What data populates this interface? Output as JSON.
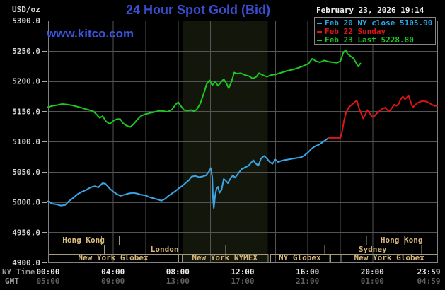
{
  "header": {
    "units_label": "USD/oz",
    "title": "24 Hour Spot Gold (Bid)",
    "site": "www.kitco.com",
    "datetime": "February 23, 2026 19:14"
  },
  "legend": {
    "items": [
      {
        "label": "Feb 20 NY close 5105.90",
        "color": "#29a8e8"
      },
      {
        "label": "Feb 22 Sunday",
        "color": "#dd1515"
      },
      {
        "label": "Feb 23 Last 5228.80",
        "color": "#1dc822"
      }
    ]
  },
  "axes": {
    "ny_caption": "NY Time",
    "gmt_caption": "GMT",
    "y_tick_values": [
      5300,
      5250,
      5200,
      5150,
      5100,
      5050,
      5000,
      4950,
      4900
    ],
    "x_ticks": [
      {
        "t": 0,
        "ny": "00:00",
        "gmt": "05:00"
      },
      {
        "t": 4,
        "ny": "04:00",
        "gmt": "09:00"
      },
      {
        "t": 8,
        "ny": "08:00",
        "gmt": "13:00"
      },
      {
        "t": 12,
        "ny": "12:00",
        "gmt": "17:00"
      },
      {
        "t": 16,
        "ny": "16:00",
        "gmt": "21:00"
      },
      {
        "t": 20,
        "ny": "20:00",
        "gmt": "01:00"
      },
      {
        "t": 24,
        "ny": "23:59",
        "gmt": "04:59"
      }
    ],
    "colors": {
      "ny_labels": "#e8e8e8",
      "gmt_labels": "#606060",
      "tick_labels": "#d6d6d6",
      "grid": "#545454",
      "border": "#828282",
      "band": "#12160b"
    }
  },
  "sessions": {
    "text_color": "#d9b97c",
    "border_color": "#a39a7e",
    "rows": [
      {
        "boxes": [
          {
            "label": "Hong Kong",
            "t0": 0,
            "t1": 4.37,
            "div": 3.28
          },
          {
            "label": "Hong Kong",
            "t0": 19.61,
            "t1": 24,
            "div": 21.96
          }
        ]
      },
      {
        "boxes": [
          {
            "label": "",
            "t0": 0,
            "t1": 3.45
          },
          {
            "label": "London",
            "t0": 3.45,
            "t1": 10.92
          },
          {
            "label": "Sydney",
            "t0": 17.03,
            "t1": 23.01
          },
          {
            "label": "",
            "t0": 23.01,
            "t1": 24
          }
        ]
      },
      {
        "boxes": [
          {
            "label": "New York Globex",
            "t0": 0,
            "t1": 8.03
          },
          {
            "label": "New York NYMEX",
            "t0": 8.25,
            "t1": 13.54
          },
          {
            "label": "NY Globex",
            "t0": 13.71,
            "t1": 17.34
          },
          {
            "label": "",
            "t0": 17.42,
            "t1": 17.99
          },
          {
            "label": "New York Globex",
            "t0": 18.08,
            "t1": 24
          }
        ]
      }
    ]
  },
  "chart_data": {
    "type": "line",
    "title": "24 Hour Spot Gold (Bid)",
    "xlabel": "NY Time (hours 00:00-23:59)",
    "ylabel": "USD/oz",
    "xlim": [
      0,
      24
    ],
    "ylim": [
      4900,
      5300
    ],
    "grid": "on, 2h vertical / 50 USD horizontal",
    "legend_position": "top-right",
    "shaded_region": {
      "t0": 8.3,
      "t1": 13.54
    },
    "series": [
      {
        "name": "Feb 20 NY close 5105.90",
        "color": "#3aa6e8",
        "points": [
          [
            0,
            5001
          ],
          [
            0.26,
            4997
          ],
          [
            0.52,
            4996
          ],
          [
            0.79,
            4994
          ],
          [
            1.05,
            4995
          ],
          [
            1.31,
            5002
          ],
          [
            1.57,
            5007
          ],
          [
            1.83,
            5013
          ],
          [
            2.1,
            5017
          ],
          [
            2.36,
            5020
          ],
          [
            2.62,
            5024
          ],
          [
            2.88,
            5026
          ],
          [
            3.1,
            5024
          ],
          [
            3.36,
            5031
          ],
          [
            3.54,
            5030
          ],
          [
            3.8,
            5022
          ],
          [
            4.02,
            5017
          ],
          [
            4.24,
            5013
          ],
          [
            4.45,
            5010
          ],
          [
            4.72,
            5012
          ],
          [
            4.98,
            5014
          ],
          [
            5.24,
            5015
          ],
          [
            5.46,
            5014
          ],
          [
            5.72,
            5012
          ],
          [
            5.98,
            5011
          ],
          [
            6.24,
            5008
          ],
          [
            6.51,
            5006
          ],
          [
            6.77,
            5004
          ],
          [
            6.99,
            5002
          ],
          [
            7.21,
            5005
          ],
          [
            7.42,
            5010
          ],
          [
            7.64,
            5014
          ],
          [
            7.86,
            5018
          ],
          [
            8.03,
            5022
          ],
          [
            8.25,
            5026
          ],
          [
            8.47,
            5031
          ],
          [
            8.69,
            5036
          ],
          [
            8.86,
            5042
          ],
          [
            9.08,
            5043
          ],
          [
            9.3,
            5041
          ],
          [
            9.52,
            5042
          ],
          [
            9.74,
            5044
          ],
          [
            9.91,
            5050
          ],
          [
            10.04,
            5056
          ],
          [
            10.13,
            5040
          ],
          [
            10.17,
            5005
          ],
          [
            10.22,
            4990
          ],
          [
            10.31,
            5012
          ],
          [
            10.39,
            5022
          ],
          [
            10.48,
            5025
          ],
          [
            10.57,
            5015
          ],
          [
            10.7,
            5020
          ],
          [
            10.83,
            5038
          ],
          [
            10.96,
            5035
          ],
          [
            11.09,
            5031
          ],
          [
            11.27,
            5040
          ],
          [
            11.4,
            5044
          ],
          [
            11.53,
            5040
          ],
          [
            11.7,
            5046
          ],
          [
            11.92,
            5054
          ],
          [
            12.14,
            5057
          ],
          [
            12.36,
            5060
          ],
          [
            12.53,
            5065
          ],
          [
            12.66,
            5069
          ],
          [
            12.79,
            5064
          ],
          [
            12.97,
            5060
          ],
          [
            13.14,
            5072
          ],
          [
            13.32,
            5076
          ],
          [
            13.49,
            5072
          ],
          [
            13.67,
            5066
          ],
          [
            13.84,
            5063
          ],
          [
            14.02,
            5070
          ],
          [
            14.19,
            5066
          ],
          [
            14.37,
            5068
          ],
          [
            14.54,
            5069
          ],
          [
            14.76,
            5070
          ],
          [
            14.98,
            5071
          ],
          [
            15.2,
            5072
          ],
          [
            15.41,
            5073
          ],
          [
            15.63,
            5074
          ],
          [
            15.81,
            5077
          ],
          [
            16.03,
            5082
          ],
          [
            16.24,
            5088
          ],
          [
            16.46,
            5092
          ],
          [
            16.72,
            5095
          ],
          [
            16.99,
            5100
          ],
          [
            17.2,
            5104
          ],
          [
            17.29,
            5106
          ]
        ]
      },
      {
        "name": "Feb 22 Sunday",
        "color": "#dd1515",
        "points": [
          [
            17.29,
            5106
          ],
          [
            18.03,
            5106
          ],
          [
            18.12,
            5115
          ],
          [
            18.25,
            5134
          ],
          [
            18.38,
            5148
          ],
          [
            18.56,
            5157
          ],
          [
            18.78,
            5162
          ],
          [
            18.95,
            5166
          ],
          [
            19.04,
            5168
          ],
          [
            19.17,
            5156
          ],
          [
            19.3,
            5147
          ],
          [
            19.43,
            5138
          ],
          [
            19.56,
            5144
          ],
          [
            19.69,
            5152
          ],
          [
            19.83,
            5147
          ],
          [
            19.96,
            5141
          ],
          [
            20.13,
            5142
          ],
          [
            20.26,
            5146
          ],
          [
            20.44,
            5150
          ],
          [
            20.61,
            5154
          ],
          [
            20.79,
            5156
          ],
          [
            20.92,
            5152
          ],
          [
            21.05,
            5150
          ],
          [
            21.22,
            5156
          ],
          [
            21.35,
            5161
          ],
          [
            21.48,
            5159
          ],
          [
            21.62,
            5162
          ],
          [
            21.75,
            5170
          ],
          [
            21.88,
            5174
          ],
          [
            22.01,
            5170
          ],
          [
            22.14,
            5173
          ],
          [
            22.23,
            5176
          ],
          [
            22.36,
            5166
          ],
          [
            22.49,
            5156
          ],
          [
            22.62,
            5160
          ],
          [
            22.79,
            5164
          ],
          [
            22.97,
            5166
          ],
          [
            23.14,
            5167
          ],
          [
            23.32,
            5166
          ],
          [
            23.49,
            5164
          ],
          [
            23.67,
            5161
          ],
          [
            23.84,
            5159
          ],
          [
            24,
            5159
          ]
        ]
      },
      {
        "name": "Feb 23 Last 5228.80",
        "color": "#1dc822",
        "points": [
          [
            0,
            5157
          ],
          [
            0.26,
            5159
          ],
          [
            0.52,
            5160
          ],
          [
            0.87,
            5162
          ],
          [
            1.18,
            5161
          ],
          [
            1.44,
            5160
          ],
          [
            1.75,
            5158
          ],
          [
            2.01,
            5156
          ],
          [
            2.27,
            5154
          ],
          [
            2.53,
            5152
          ],
          [
            2.79,
            5150
          ],
          [
            3.01,
            5144
          ],
          [
            3.19,
            5139
          ],
          [
            3.36,
            5142
          ],
          [
            3.58,
            5133
          ],
          [
            3.8,
            5129
          ],
          [
            4.02,
            5134
          ],
          [
            4.24,
            5137
          ],
          [
            4.45,
            5137
          ],
          [
            4.63,
            5130
          ],
          [
            4.85,
            5126
          ],
          [
            5.07,
            5124
          ],
          [
            5.28,
            5129
          ],
          [
            5.5,
            5136
          ],
          [
            5.72,
            5142
          ],
          [
            5.98,
            5145
          ],
          [
            6.29,
            5147
          ],
          [
            6.59,
            5149
          ],
          [
            6.9,
            5151
          ],
          [
            7.16,
            5150
          ],
          [
            7.38,
            5149
          ],
          [
            7.64,
            5153
          ],
          [
            7.86,
            5161
          ],
          [
            8.03,
            5165
          ],
          [
            8.21,
            5158
          ],
          [
            8.38,
            5152
          ],
          [
            8.6,
            5151
          ],
          [
            8.82,
            5152
          ],
          [
            9,
            5150
          ],
          [
            9.17,
            5153
          ],
          [
            9.39,
            5163
          ],
          [
            9.61,
            5180
          ],
          [
            9.78,
            5195
          ],
          [
            9.96,
            5201
          ],
          [
            10.13,
            5193
          ],
          [
            10.31,
            5199
          ],
          [
            10.48,
            5192
          ],
          [
            10.66,
            5198
          ],
          [
            10.83,
            5203
          ],
          [
            11,
            5196
          ],
          [
            11.14,
            5188
          ],
          [
            11.31,
            5199
          ],
          [
            11.48,
            5214
          ],
          [
            11.66,
            5212
          ],
          [
            11.88,
            5213
          ],
          [
            12.14,
            5210
          ],
          [
            12.4,
            5208
          ],
          [
            12.62,
            5204
          ],
          [
            12.84,
            5207
          ],
          [
            13.01,
            5213
          ],
          [
            13.23,
            5210
          ],
          [
            13.49,
            5207
          ],
          [
            13.76,
            5210
          ],
          [
            14.06,
            5211
          ],
          [
            14.41,
            5214
          ],
          [
            14.76,
            5217
          ],
          [
            15.11,
            5219
          ],
          [
            15.46,
            5222
          ],
          [
            15.76,
            5225
          ],
          [
            16.07,
            5229
          ],
          [
            16.29,
            5237
          ],
          [
            16.51,
            5233
          ],
          [
            16.77,
            5231
          ],
          [
            17.03,
            5234
          ],
          [
            17.29,
            5232
          ],
          [
            17.55,
            5231
          ],
          [
            17.82,
            5230
          ],
          [
            18.03,
            5233
          ],
          [
            18.21,
            5247
          ],
          [
            18.34,
            5251
          ],
          [
            18.47,
            5245
          ],
          [
            18.65,
            5241
          ],
          [
            18.82,
            5238
          ],
          [
            19,
            5230
          ],
          [
            19.13,
            5224
          ],
          [
            19.26,
            5229
          ]
        ]
      }
    ]
  }
}
